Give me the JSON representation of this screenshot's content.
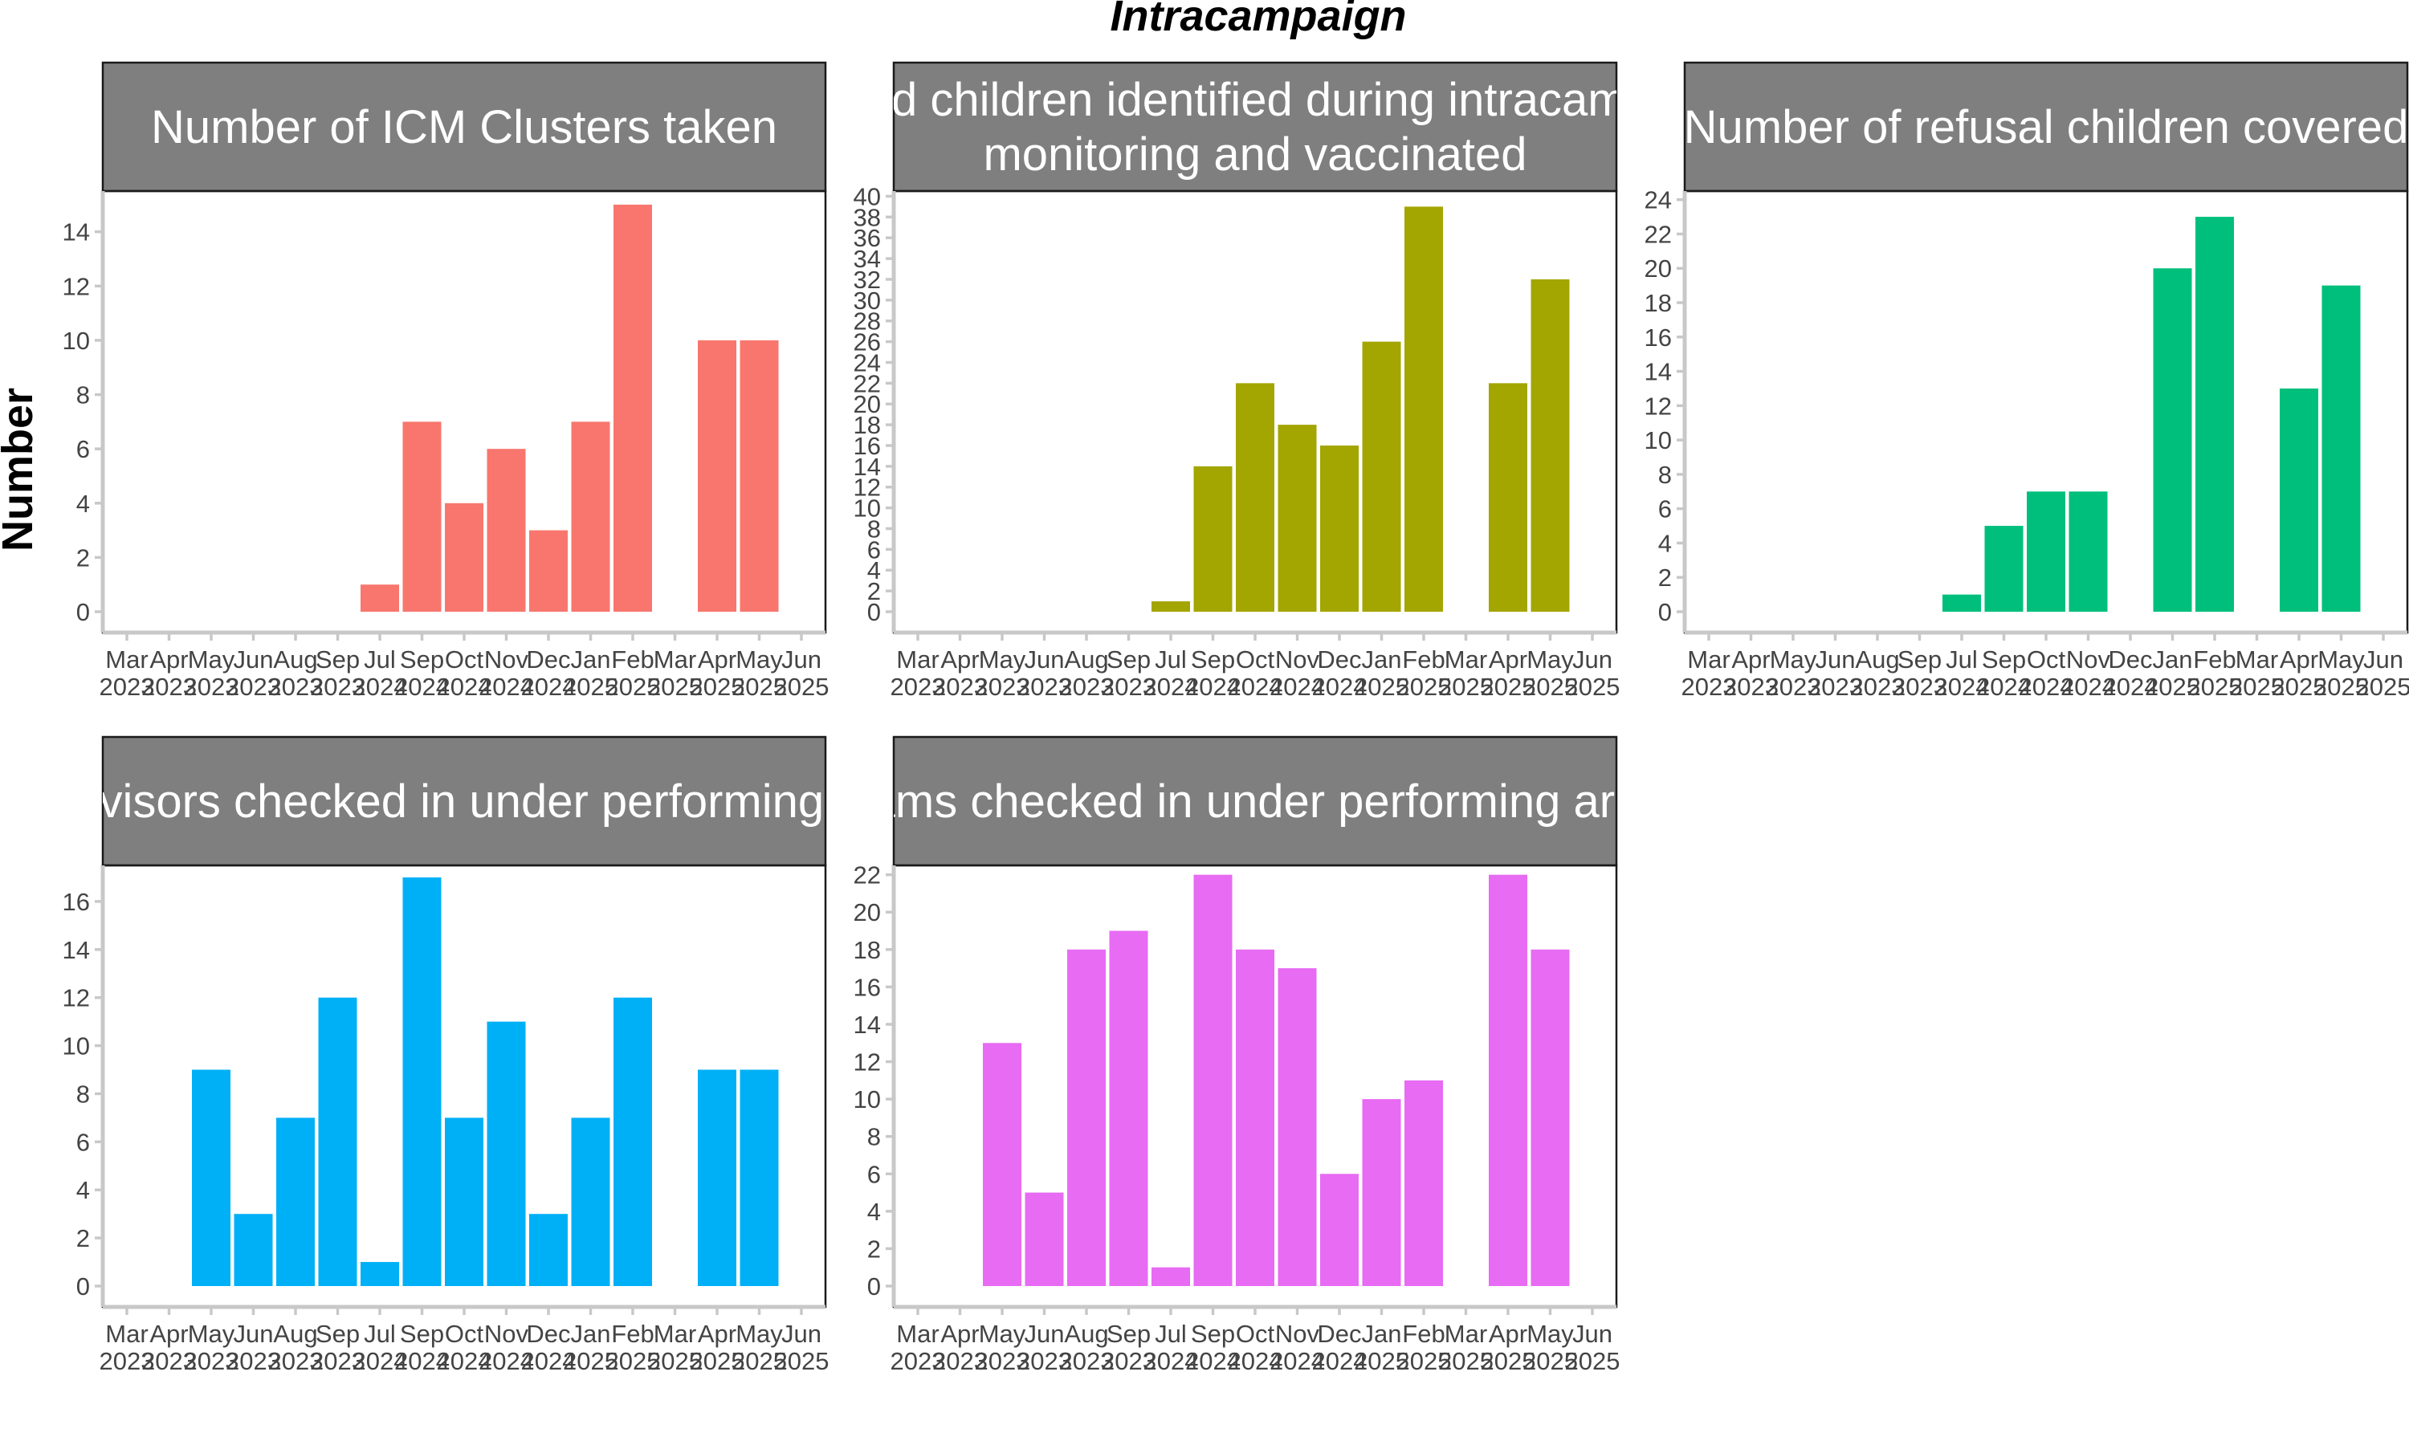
{
  "chart_data": {
    "type": "bar",
    "title": "Intracampaign",
    "xlabel": "",
    "ylabel": "Number",
    "grid": false,
    "legend": "none",
    "categories": [
      "Mar 2023",
      "Apr 2023",
      "May 2023",
      "Jun 2023",
      "Aug 2023",
      "Sep 2023",
      "Jul 2024",
      "Sep 2024",
      "Oct 2024",
      "Nov 2024",
      "Dec 2024",
      "Jan 2025",
      "Feb 2025",
      "Mar 2025",
      "Apr 2025",
      "May 2025",
      "Jun 2025"
    ],
    "tick_months": [
      "Mar",
      "Apr",
      "May",
      "Jun",
      "Aug",
      "Sep",
      "Jul",
      "Sep",
      "Oct",
      "Nov",
      "Dec",
      "Jan",
      "Feb",
      "Mar",
      "Apr",
      "May",
      "Jun"
    ],
    "tick_years": [
      "2023",
      "2023",
      "2023",
      "2023",
      "2023",
      "2023",
      "2024",
      "2024",
      "2024",
      "2024",
      "2024",
      "2025",
      "2025",
      "2025",
      "2025",
      "2025",
      "2025"
    ],
    "panels": [
      {
        "strip": [
          "Number of ICM Clusters taken"
        ],
        "color": "#F8766D",
        "ylim": [
          0,
          15.5
        ],
        "yticks": [
          0,
          2,
          4,
          6,
          8,
          10,
          12,
          14
        ],
        "values": [
          null,
          null,
          null,
          null,
          null,
          null,
          1,
          7,
          4,
          6,
          3,
          7,
          15,
          null,
          10,
          10,
          null
        ]
      },
      {
        "strip": [
          "Missed children identified during intracampaign",
          "monitoring and vaccinated"
        ],
        "color": "#A3A500",
        "ylim": [
          0,
          40.5
        ],
        "yticks": [
          0,
          2,
          4,
          6,
          8,
          10,
          12,
          14,
          16,
          18,
          20,
          22,
          24,
          26,
          28,
          30,
          32,
          34,
          36,
          38,
          40
        ],
        "values": [
          null,
          null,
          null,
          null,
          null,
          null,
          1,
          14,
          22,
          18,
          16,
          26,
          39,
          null,
          22,
          32,
          null
        ]
      },
      {
        "strip": [
          "Number of refusal children covered"
        ],
        "color": "#00BF7D",
        "ylim": [
          0,
          24.5
        ],
        "yticks": [
          0,
          2,
          4,
          6,
          8,
          10,
          12,
          14,
          16,
          18,
          20,
          22,
          24
        ],
        "values": [
          null,
          null,
          null,
          null,
          null,
          null,
          1,
          5,
          7,
          7,
          null,
          20,
          23,
          null,
          13,
          19,
          null
        ]
      },
      {
        "strip": [
          "Supervisors checked in under performing areas"
        ],
        "color": "#00B0F6",
        "ylim": [
          0,
          17.5
        ],
        "yticks": [
          0,
          2,
          4,
          6,
          8,
          10,
          12,
          14,
          16
        ],
        "values": [
          null,
          null,
          9,
          3,
          7,
          12,
          1,
          17,
          7,
          11,
          3,
          7,
          12,
          null,
          9,
          9,
          null
        ]
      },
      {
        "strip": [
          "Teams checked in under performing areas"
        ],
        "color": "#E76BF3",
        "ylim": [
          0,
          22.5
        ],
        "yticks": [
          0,
          2,
          4,
          6,
          8,
          10,
          12,
          14,
          16,
          18,
          20,
          22
        ],
        "values": [
          null,
          null,
          13,
          5,
          18,
          19,
          1,
          22,
          18,
          17,
          6,
          10,
          11,
          null,
          22,
          18,
          null
        ]
      }
    ]
  }
}
